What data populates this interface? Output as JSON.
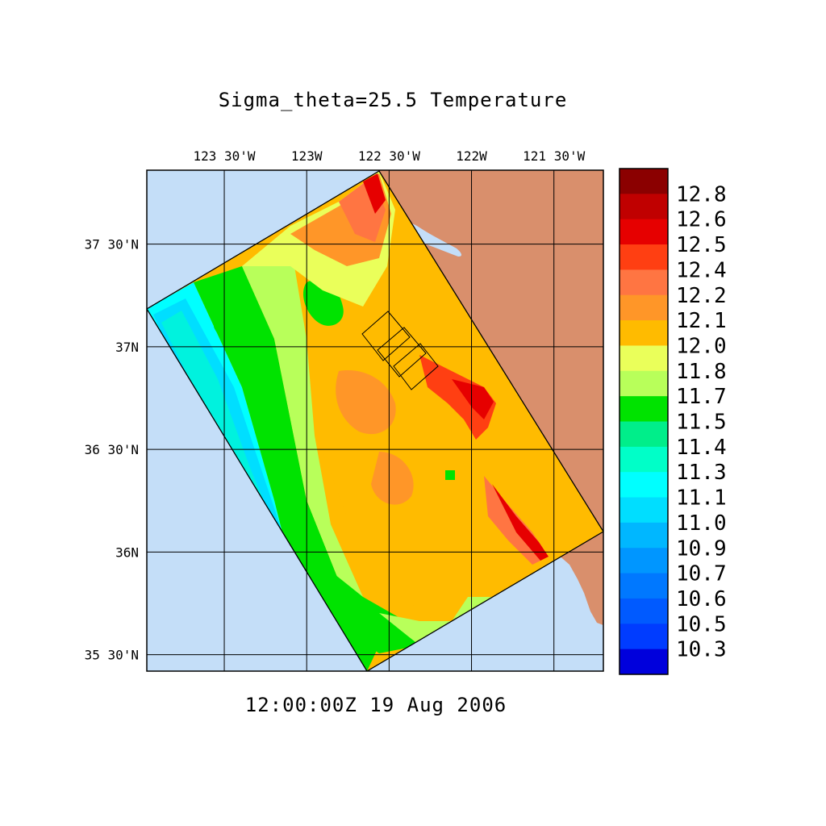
{
  "title": "Sigma_theta=25.5 Temperature",
  "timestamp": "12:00:00Z  19 Aug 2006",
  "colors": {
    "ocean": "#c4def8",
    "land": "#d98f6c",
    "grid": "#000000"
  },
  "map": {
    "lon_range": [
      -123.97,
      -121.2
    ],
    "lat_range": [
      35.42,
      37.86
    ],
    "lon_ticks": [
      {
        "value": -123.5,
        "label": "123 30'W"
      },
      {
        "value": -123.0,
        "label": "123W"
      },
      {
        "value": -122.5,
        "label": "122 30'W"
      },
      {
        "value": -122.0,
        "label": "122W"
      },
      {
        "value": -121.5,
        "label": "121 30'W"
      }
    ],
    "lat_ticks": [
      {
        "value": 37.5,
        "label": "37 30'N"
      },
      {
        "value": 37.0,
        "label": "37N"
      },
      {
        "value": 36.5,
        "label": "36 30'N"
      },
      {
        "value": 36.0,
        "label": "36N"
      },
      {
        "value": 35.5,
        "label": "35 30'N"
      }
    ]
  },
  "colorbar": {
    "colors": [
      "#8b0000",
      "#c00000",
      "#e60000",
      "#ff3f12",
      "#ff7542",
      "#ff9628",
      "#ffbb00",
      "#eaff5a",
      "#b8ff5a",
      "#00e300",
      "#00ee8a",
      "#00ffc8",
      "#00ffff",
      "#00deff",
      "#00b7ff",
      "#0096ff",
      "#0078ff",
      "#005aff",
      "#003cff",
      "#0000dc"
    ],
    "labels": [
      "12.8",
      "12.6",
      "12.5",
      "12.4",
      "12.2",
      "12.1",
      "12.0",
      "11.8",
      "11.7",
      "11.5",
      "11.4",
      "11.3",
      "11.1",
      "11.0",
      "10.9",
      "10.7",
      "10.6",
      "10.5",
      "10.3"
    ]
  }
}
